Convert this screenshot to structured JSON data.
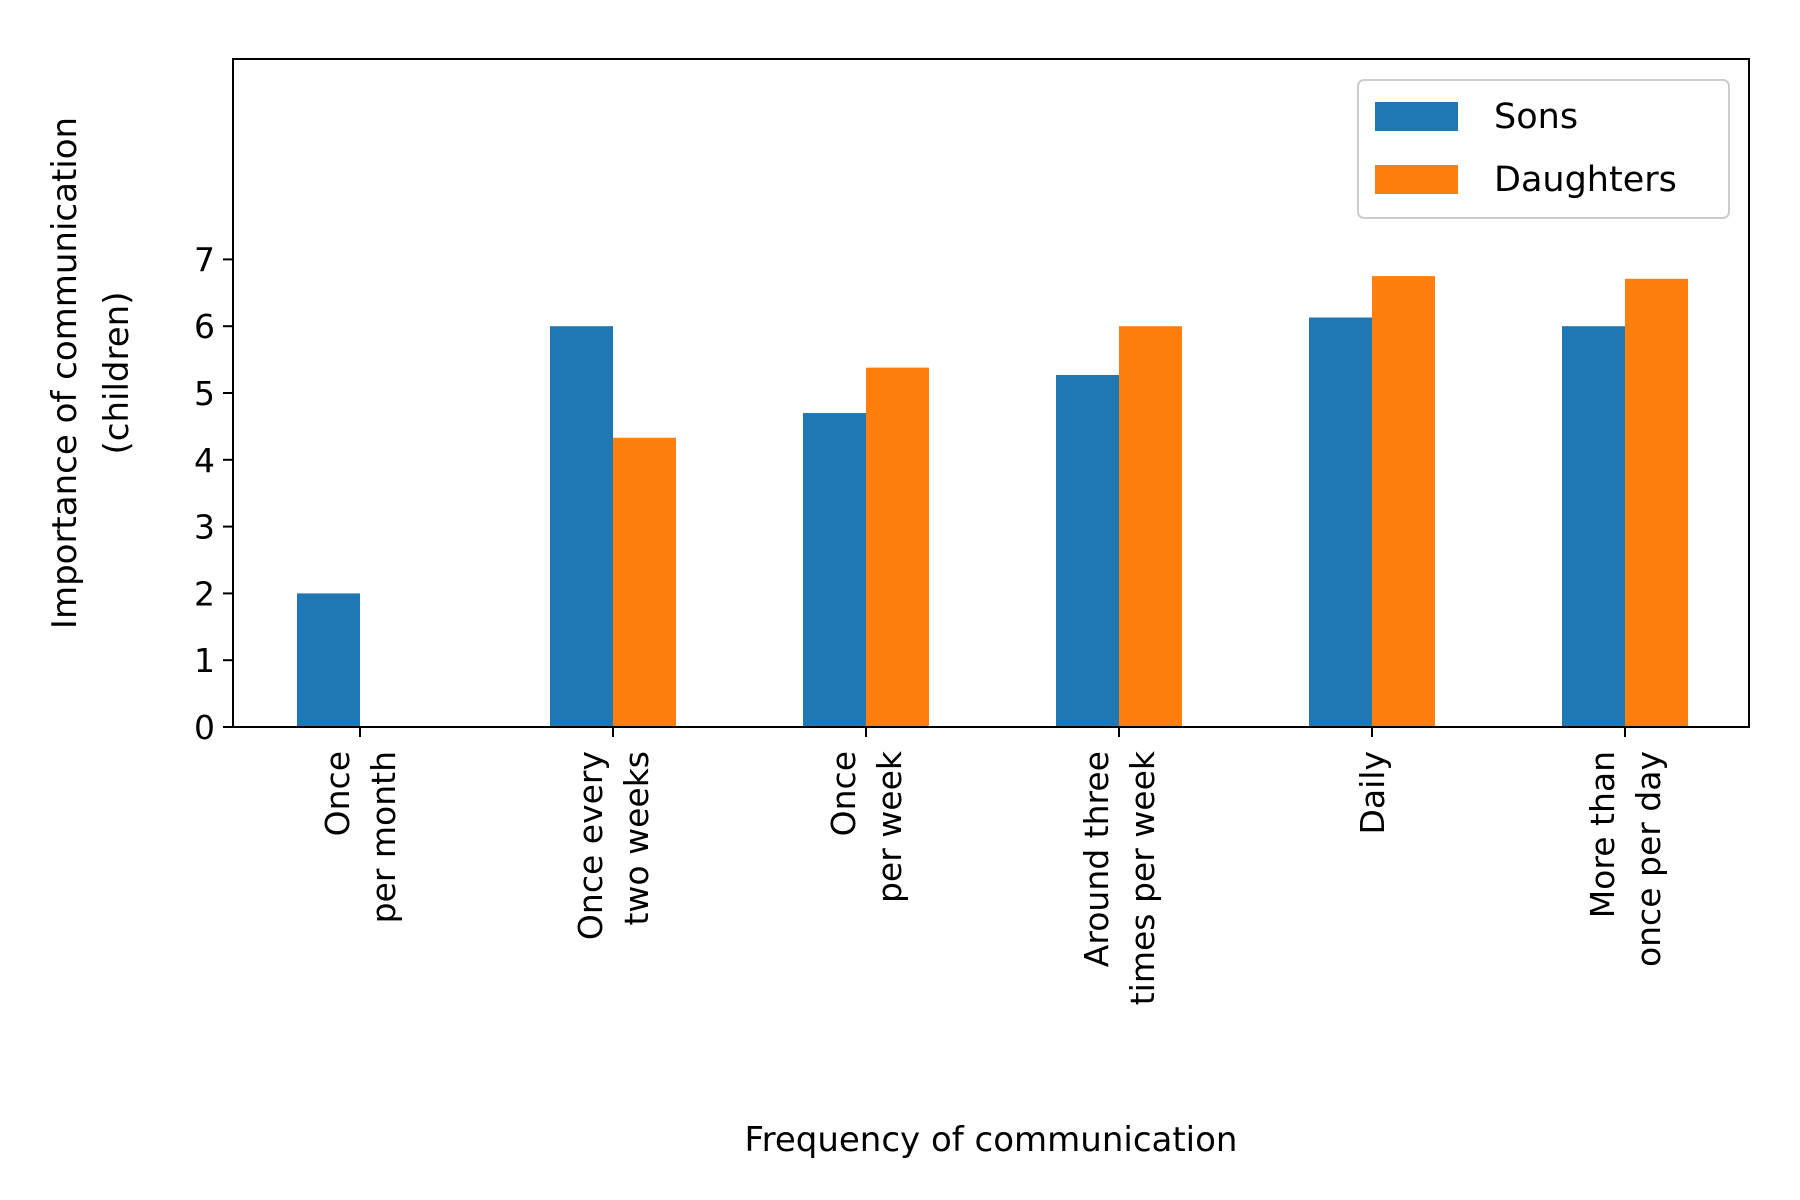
{
  "chart_data": {
    "type": "bar",
    "xlabel": "Frequency of communication",
    "ylabel_lines": [
      "Importance of communication",
      "(children)"
    ],
    "categories": [
      [
        "Once",
        "per month"
      ],
      [
        "Once every",
        "two weeks"
      ],
      [
        "Once",
        "per week"
      ],
      [
        "Around three",
        "times per week"
      ],
      [
        "Daily"
      ],
      [
        "More than",
        "once per day"
      ]
    ],
    "series": [
      {
        "name": "Sons",
        "color": "#1f77b4",
        "values": [
          2.0,
          6.0,
          4.7,
          5.27,
          6.13,
          6.0
        ]
      },
      {
        "name": "Daughters",
        "color": "#ff7f0e",
        "values": [
          0,
          4.33,
          5.38,
          6.0,
          6.75,
          6.71
        ]
      }
    ],
    "ylim": [
      0,
      10
    ],
    "yticks": [
      0,
      1,
      2,
      3,
      4,
      5,
      6,
      7
    ],
    "grid": false,
    "legend_position": "top-right"
  }
}
